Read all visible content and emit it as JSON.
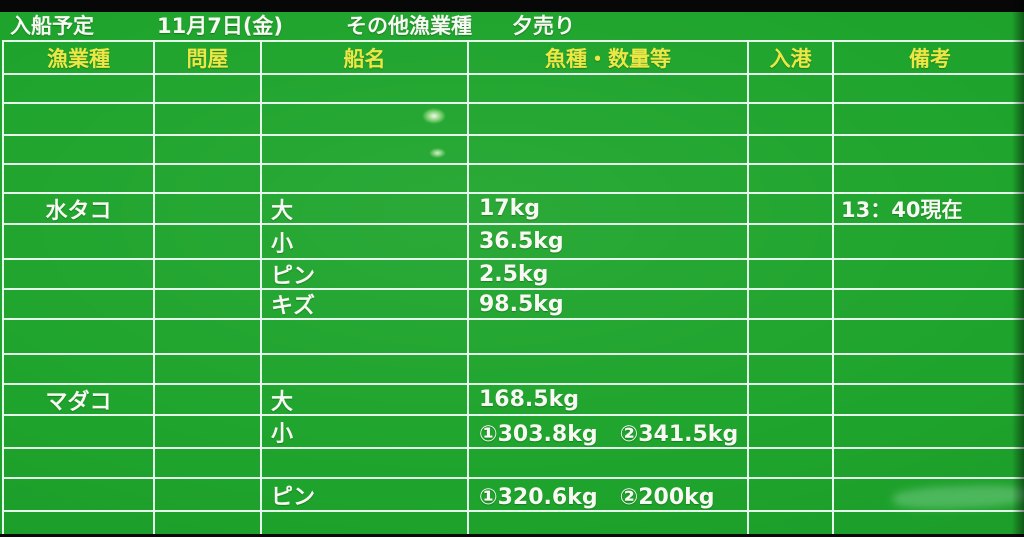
{
  "screen": {
    "colors": {
      "background_green": "#1ea42c",
      "header_yellow": "#ede745",
      "text_white": "#f7f9f2",
      "grid_line": "#e4f8ec"
    }
  },
  "title_bar": {
    "schedule_label": "入船予定",
    "date": "11月7日(金)",
    "category": "その他漁業種",
    "session": "夕売り"
  },
  "table": {
    "headers": [
      "漁業種",
      "問屋",
      "船名",
      "魚種・数量等",
      "入港",
      "備考"
    ],
    "rows": [
      [
        "",
        "",
        "",
        "",
        "",
        ""
      ],
      [
        "",
        "",
        "",
        "",
        "",
        ""
      ],
      [
        "",
        "",
        "",
        "",
        "",
        ""
      ],
      [
        "",
        "",
        "",
        "",
        "",
        ""
      ],
      [
        "水タコ",
        "",
        "大",
        "17kg",
        "",
        "13：40現在"
      ],
      [
        "",
        "",
        "小",
        "36.5kg",
        "",
        ""
      ],
      [
        "",
        "",
        "ピン",
        "2.5kg",
        "",
        ""
      ],
      [
        "",
        "",
        "キズ",
        "98.5kg",
        "",
        ""
      ],
      [
        "",
        "",
        "",
        "",
        "",
        ""
      ],
      [
        "",
        "",
        "",
        "",
        "",
        ""
      ],
      [
        "マダコ",
        "",
        "大",
        "168.5kg",
        "",
        ""
      ],
      [
        "",
        "",
        "小",
        "①303.8kg　②341.5kg",
        "",
        ""
      ],
      [
        "",
        "",
        "",
        "",
        "",
        ""
      ],
      [
        "",
        "",
        "ピン",
        "①320.6kg　②200kg",
        "",
        ""
      ],
      [
        "",
        "",
        "",
        "",
        "",
        ""
      ]
    ]
  }
}
